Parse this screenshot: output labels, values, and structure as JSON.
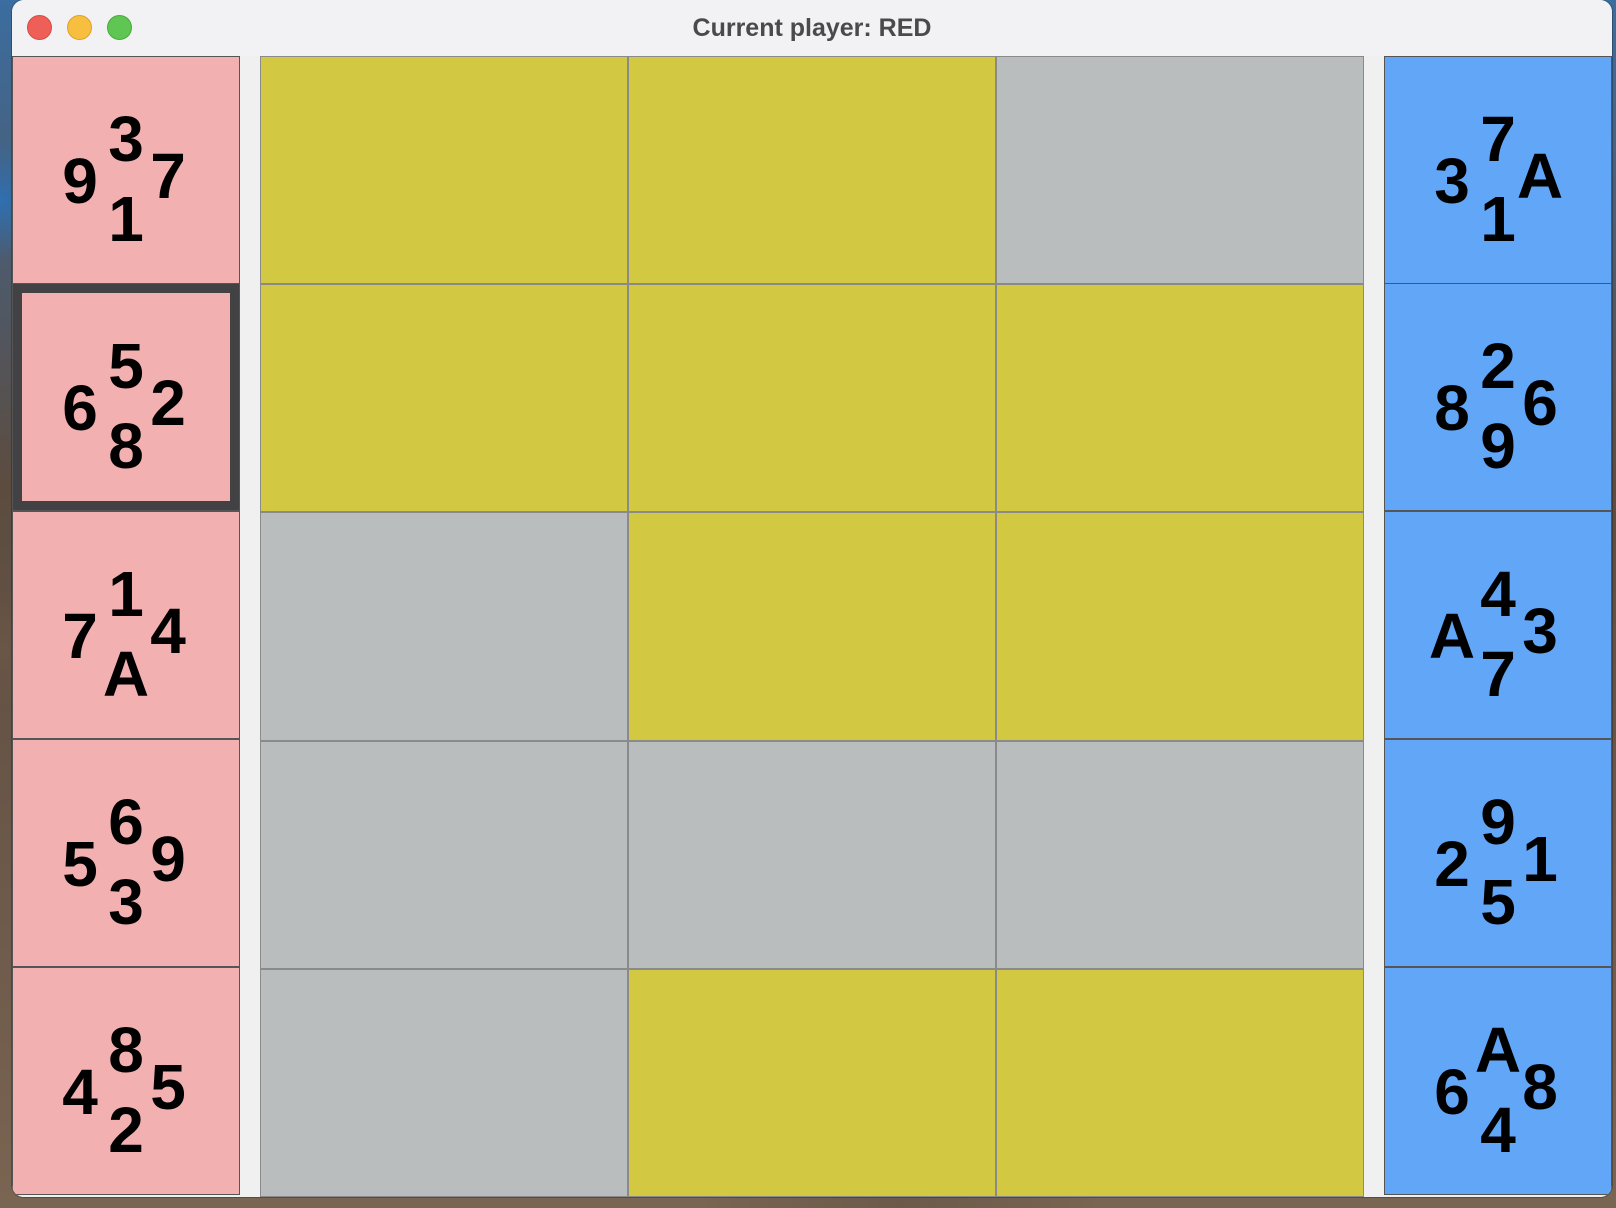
{
  "window": {
    "title": "Current player: RED"
  },
  "colors": {
    "red_card": "#f3b0b1",
    "blue_card": "#62a6f8",
    "empty_cell": "#b9bdbe",
    "occupied_cell": "#d3c842",
    "selected_border": "#424244"
  },
  "red_hand": [
    {
      "top": "3",
      "left": "9",
      "right": "7",
      "bottom": "1",
      "selected": false
    },
    {
      "top": "5",
      "left": "6",
      "right": "2",
      "bottom": "8",
      "selected": true
    },
    {
      "top": "1",
      "left": "7",
      "right": "4",
      "bottom": "A",
      "selected": false
    },
    {
      "top": "6",
      "left": "5",
      "right": "9",
      "bottom": "3",
      "selected": false
    },
    {
      "top": "8",
      "left": "4",
      "right": "5",
      "bottom": "2",
      "selected": false
    }
  ],
  "blue_hand": [
    {
      "top": "7",
      "left": "3",
      "right": "A",
      "bottom": "1",
      "selected": false
    },
    {
      "top": "2",
      "left": "8",
      "right": "6",
      "bottom": "9",
      "selected": false
    },
    {
      "top": "4",
      "left": "A",
      "right": "3",
      "bottom": "7",
      "selected": false
    },
    {
      "top": "9",
      "left": "2",
      "right": "1",
      "bottom": "5",
      "selected": false
    },
    {
      "top": "A",
      "left": "6",
      "right": "8",
      "bottom": "4",
      "selected": false
    }
  ],
  "board": {
    "rows": 5,
    "cols": 3,
    "cells": [
      [
        "neutral",
        "neutral",
        "empty"
      ],
      [
        "neutral",
        "neutral",
        "neutral"
      ],
      [
        "empty",
        "neutral",
        "neutral"
      ],
      [
        "empty",
        "empty",
        "empty"
      ],
      [
        "empty",
        "neutral",
        "neutral"
      ]
    ]
  }
}
